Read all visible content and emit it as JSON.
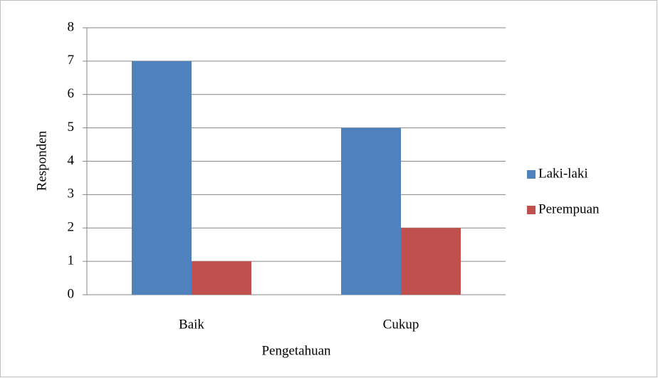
{
  "chart_data": {
    "type": "bar",
    "categories": [
      "Baik",
      "Cukup"
    ],
    "series": [
      {
        "name": "Laki-laki",
        "color": "#4f81bd",
        "values": [
          7,
          5
        ]
      },
      {
        "name": "Perempuan",
        "color": "#c0504d",
        "values": [
          1,
          2
        ]
      }
    ],
    "x_label": "Pengetahuan",
    "y_label": "Responden",
    "ylim": [
      0,
      8
    ],
    "yticks": [
      0,
      1,
      2,
      3,
      4,
      5,
      6,
      7,
      8
    ],
    "grid": true,
    "legend": "right"
  }
}
